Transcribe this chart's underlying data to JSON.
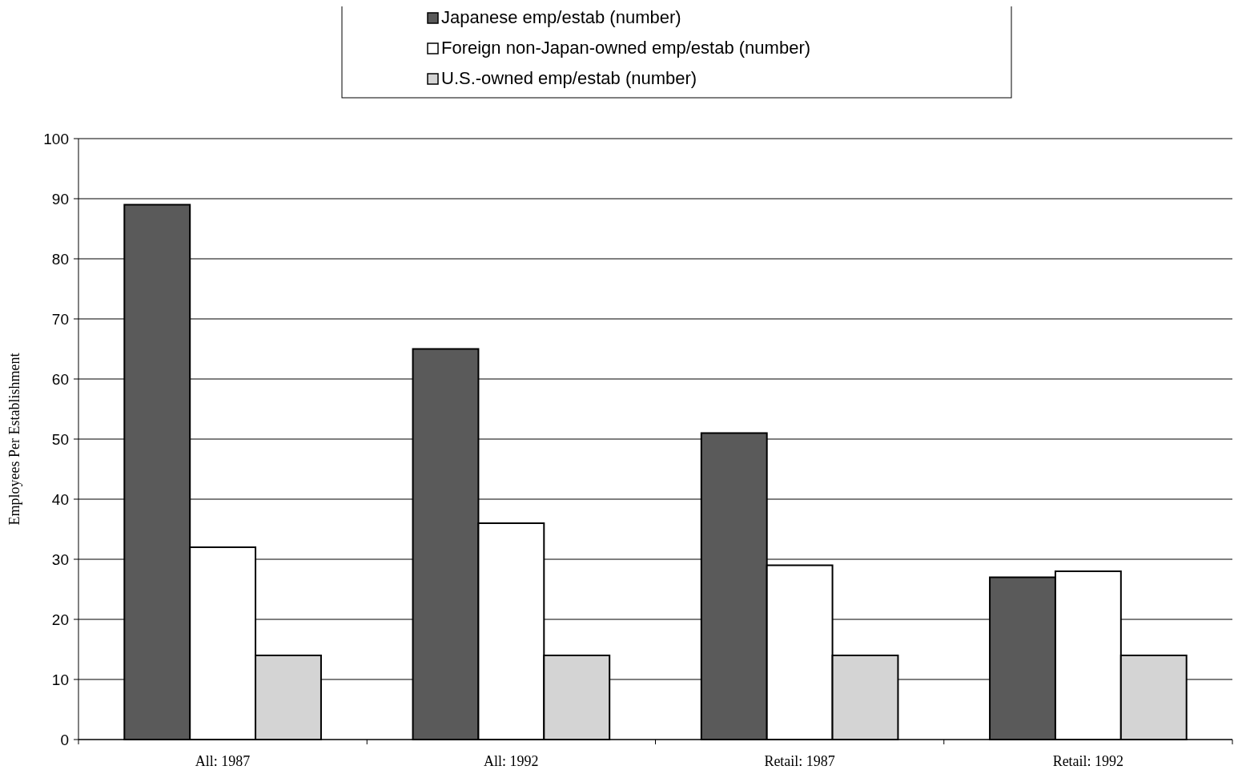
{
  "chart_data": {
    "type": "bar",
    "ylabel": "Employees Per Establishment",
    "categories": [
      "All: 1987",
      "All: 1992",
      "Retail: 1987",
      "Retail: 1992"
    ],
    "series": [
      {
        "name": "Japanese emp/estab (number)",
        "color": "#5a5a5a",
        "values": [
          89,
          65,
          51,
          27
        ]
      },
      {
        "name": "Foreign non-Japan-owned emp/estab (number)",
        "color": "#ffffff",
        "values": [
          32,
          36,
          29,
          28
        ]
      },
      {
        "name": "U.S.-owned emp/estab (number)",
        "color": "#d4d4d4",
        "values": [
          14,
          14,
          14,
          14
        ]
      }
    ],
    "ylim": [
      0,
      100
    ],
    "yticks": [
      0,
      10,
      20,
      30,
      40,
      50,
      60,
      70,
      80,
      90,
      100
    ],
    "grid": "y",
    "legend": "top"
  }
}
